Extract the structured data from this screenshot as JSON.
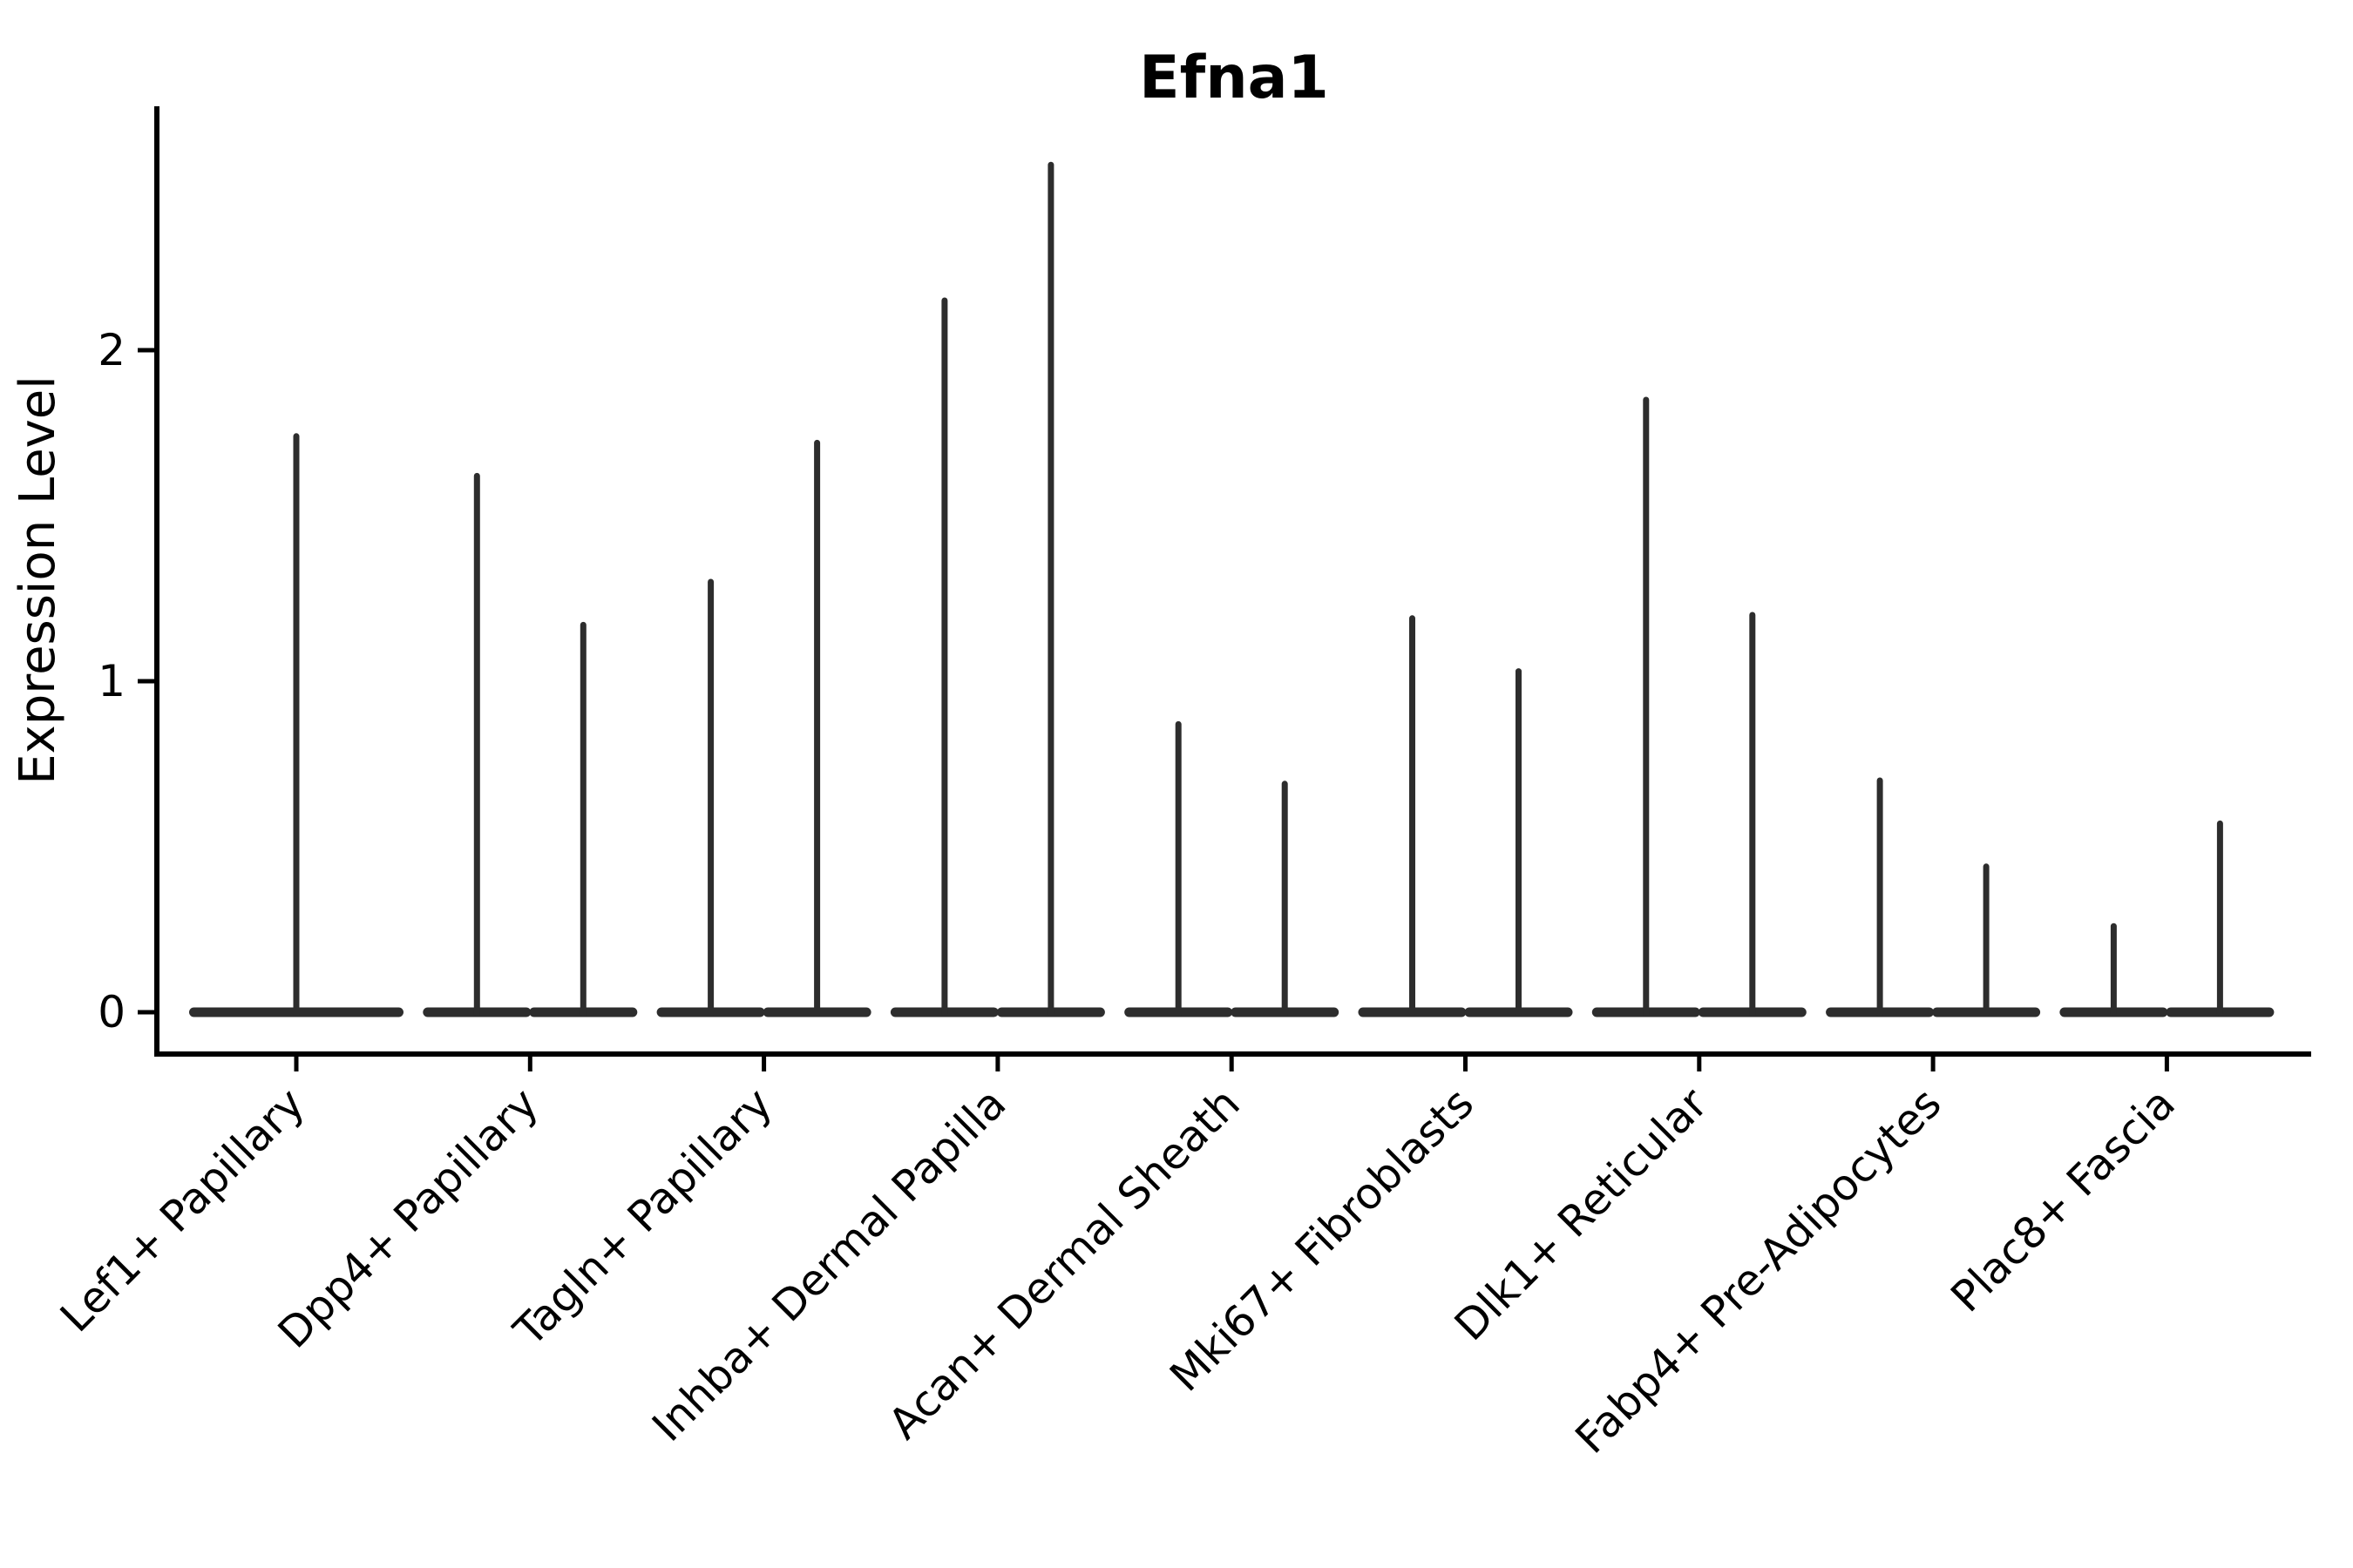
{
  "chart_data": {
    "type": "violin",
    "title": "Efna1",
    "xlabel": "",
    "ylabel": "Expression Level",
    "yticks": [
      "0",
      "1",
      "2"
    ],
    "ytick_values": [
      0,
      1,
      2
    ],
    "ylim": [
      0,
      2.74
    ],
    "grid": false,
    "legend": false,
    "violin_color": "#2d2d2d",
    "axis_color": "#000000",
    "categories": [
      {
        "label": "Lef1+ Papillary",
        "violins": [
          {
            "max_expression": 1.74
          }
        ]
      },
      {
        "label": "Dpp4+ Papillary",
        "violins": [
          {
            "max_expression": 1.62
          },
          {
            "max_expression": 1.17
          }
        ]
      },
      {
        "label": "Tagln+ Papillary",
        "violins": [
          {
            "max_expression": 1.3
          },
          {
            "max_expression": 1.72
          }
        ]
      },
      {
        "label": "Inhba+ Dermal Papilla",
        "violins": [
          {
            "max_expression": 2.15
          },
          {
            "max_expression": 2.56
          }
        ]
      },
      {
        "label": "Acan+ Dermal Sheath",
        "violins": [
          {
            "max_expression": 0.87
          },
          {
            "max_expression": 0.69
          }
        ]
      },
      {
        "label": "Mki67+ Fibroblasts",
        "violins": [
          {
            "max_expression": 1.19
          },
          {
            "max_expression": 1.03
          }
        ]
      },
      {
        "label": "Dlk1+ Reticular",
        "violins": [
          {
            "max_expression": 1.85
          },
          {
            "max_expression": 1.2
          }
        ]
      },
      {
        "label": "Fabp4+ Pre-Adipocytes",
        "violins": [
          {
            "max_expression": 0.7
          },
          {
            "max_expression": 0.44
          }
        ]
      },
      {
        "label": "Plac8+ Fascia",
        "violins": [
          {
            "max_expression": 0.26
          },
          {
            "max_expression": 0.57
          }
        ]
      }
    ]
  }
}
